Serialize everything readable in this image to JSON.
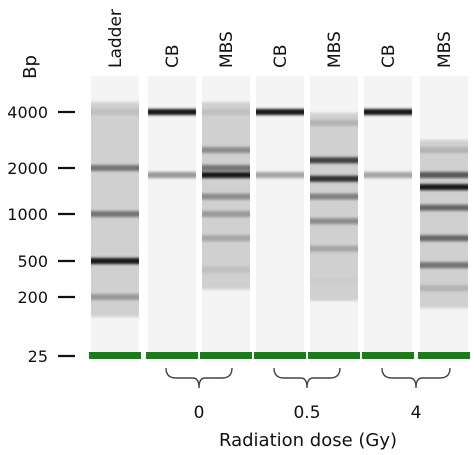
{
  "y_axis_label": "Bp",
  "size_markers": [
    "4000",
    "2000",
    "1000",
    "500",
    "200",
    "25"
  ],
  "lanes": [
    {
      "label": "Ladder",
      "bands": [
        {
          "bp": 4000,
          "intensity": 0.25
        },
        {
          "bp": 2000,
          "intensity": 0.55
        },
        {
          "bp": 1000,
          "intensity": 0.55
        },
        {
          "bp": 500,
          "intensity": 0.9
        },
        {
          "bp": 200,
          "intensity": 0.4
        }
      ]
    },
    {
      "label": "CB",
      "bands": [
        {
          "bp": 4000,
          "intensity": 0.92
        },
        {
          "bp": 1800,
          "intensity": 0.4
        }
      ]
    },
    {
      "label": "MBS",
      "bands": [
        {
          "bp": 4000,
          "intensity": 0.25
        },
        {
          "bp": 2500,
          "intensity": 0.45
        },
        {
          "bp": 2000,
          "intensity": 0.55
        },
        {
          "bp": 1800,
          "intensity": 0.9
        },
        {
          "bp": 1300,
          "intensity": 0.45
        },
        {
          "bp": 1000,
          "intensity": 0.4
        },
        {
          "bp": 700,
          "intensity": 0.35
        },
        {
          "bp": 400,
          "intensity": 0.25
        }
      ]
    },
    {
      "label": "CB",
      "bands": [
        {
          "bp": 4000,
          "intensity": 0.92
        },
        {
          "bp": 1800,
          "intensity": 0.35
        }
      ]
    },
    {
      "label": "MBS",
      "bands": [
        {
          "bp": 3500,
          "intensity": 0.3
        },
        {
          "bp": 2200,
          "intensity": 0.75
        },
        {
          "bp": 1700,
          "intensity": 0.8
        },
        {
          "bp": 1300,
          "intensity": 0.5
        },
        {
          "bp": 900,
          "intensity": 0.45
        },
        {
          "bp": 600,
          "intensity": 0.35
        },
        {
          "bp": 300,
          "intensity": 0.2
        }
      ]
    },
    {
      "label": "CB",
      "bands": [
        {
          "bp": 4000,
          "intensity": 0.92
        },
        {
          "bp": 1800,
          "intensity": 0.35
        }
      ]
    },
    {
      "label": "MBS",
      "bands": [
        {
          "bp": 2500,
          "intensity": 0.3
        },
        {
          "bp": 1800,
          "intensity": 0.65
        },
        {
          "bp": 1500,
          "intensity": 0.9
        },
        {
          "bp": 1100,
          "intensity": 0.6
        },
        {
          "bp": 700,
          "intensity": 0.6
        },
        {
          "bp": 450,
          "intensity": 0.55
        },
        {
          "bp": 250,
          "intensity": 0.3
        }
      ]
    }
  ],
  "marker_color": "#1f7a1f",
  "dose_groups": [
    {
      "label": "0"
    },
    {
      "label": "0.5"
    },
    {
      "label": "4"
    }
  ],
  "x_axis_label": "Radiation dose (Gy)"
}
